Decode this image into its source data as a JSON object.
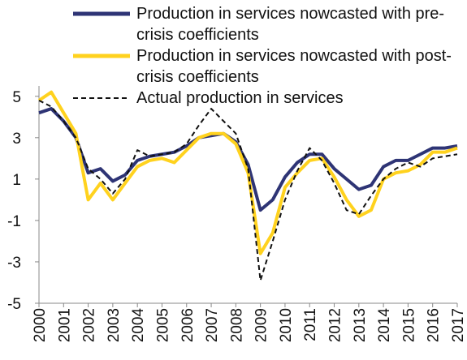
{
  "chart_data": {
    "type": "line",
    "x": [
      2000,
      2000.5,
      2001,
      2001.5,
      2002,
      2002.5,
      2003,
      2003.5,
      2004,
      2004.5,
      2005,
      2005.5,
      2006,
      2006.5,
      2007,
      2007.5,
      2008,
      2008.5,
      2009,
      2009.5,
      2010,
      2010.5,
      2011,
      2011.5,
      2012,
      2012.5,
      2013,
      2013.5,
      2014,
      2014.5,
      2015,
      2015.5,
      2016,
      2016.5,
      2017
    ],
    "series": [
      {
        "name": "Production in services nowcasted with pre-crisis coefficients",
        "color": "#2e3475",
        "dash": "none",
        "values": [
          4.2,
          4.4,
          3.8,
          3.0,
          1.3,
          1.5,
          0.9,
          1.2,
          1.9,
          2.1,
          2.2,
          2.3,
          2.6,
          3.0,
          3.1,
          3.2,
          2.8,
          1.7,
          -0.5,
          0.0,
          1.1,
          1.8,
          2.2,
          2.2,
          1.5,
          1.0,
          0.5,
          0.7,
          1.6,
          1.9,
          1.9,
          2.2,
          2.5,
          2.5,
          2.6
        ]
      },
      {
        "name": "Production in services nowcasted with post-crisis coefficients",
        "color": "#ffd21e",
        "dash": "none",
        "values": [
          4.8,
          5.2,
          4.2,
          3.2,
          0.0,
          0.8,
          0.0,
          0.8,
          1.6,
          1.9,
          2.0,
          1.8,
          2.4,
          3.0,
          3.2,
          3.2,
          2.7,
          1.3,
          -2.6,
          -1.6,
          0.6,
          1.3,
          1.9,
          2.0,
          1.1,
          0.0,
          -0.8,
          -0.5,
          1.0,
          1.3,
          1.4,
          1.7,
          2.3,
          2.3,
          2.5
        ]
      },
      {
        "name": "Actual production in services",
        "color": "#111111",
        "dash": "6 4",
        "values": [
          4.8,
          4.5,
          3.8,
          3.0,
          1.5,
          1.0,
          0.3,
          1.0,
          2.4,
          2.1,
          2.2,
          2.3,
          2.7,
          3.6,
          4.4,
          3.8,
          3.2,
          1.5,
          -3.9,
          -2.0,
          0.0,
          1.4,
          2.5,
          1.9,
          0.8,
          -0.5,
          -0.7,
          0.2,
          1.0,
          1.5,
          1.8,
          1.6,
          2.0,
          2.1,
          2.2
        ]
      }
    ],
    "xlim": [
      2000,
      2017
    ],
    "xticks": [
      2000,
      2001,
      2002,
      2003,
      2004,
      2005,
      2006,
      2007,
      2008,
      2009,
      2010,
      2011,
      2012,
      2013,
      2014,
      2015,
      2016,
      2017
    ],
    "ylim": [
      -5,
      5.5
    ],
    "yticks": [
      5,
      3,
      1,
      -1,
      -3,
      -5
    ],
    "legend": "upper left",
    "grid": false
  }
}
